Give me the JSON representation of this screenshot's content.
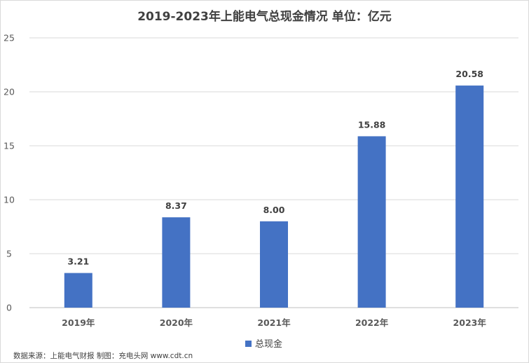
{
  "chart_data": {
    "type": "bar",
    "title": "2019-2023年上能电气总现金情况   单位：亿元",
    "categories": [
      "2019年",
      "2020年",
      "2021年",
      "2022年",
      "2023年"
    ],
    "series": [
      {
        "name": "总现金",
        "values": [
          3.21,
          8.37,
          8.0,
          15.88,
          20.58
        ],
        "color": "#4472C4"
      }
    ],
    "data_labels": [
      "3.21",
      "8.37",
      "8.00",
      "15.88",
      "20.58"
    ],
    "ylim": [
      0,
      25
    ],
    "yticks": [
      0,
      5,
      10,
      15,
      20,
      25
    ],
    "grid": true,
    "legend_position": "bottom"
  },
  "source_note": "数据来源：上能电气财报  制图：充电头网 www.cdt.cn"
}
